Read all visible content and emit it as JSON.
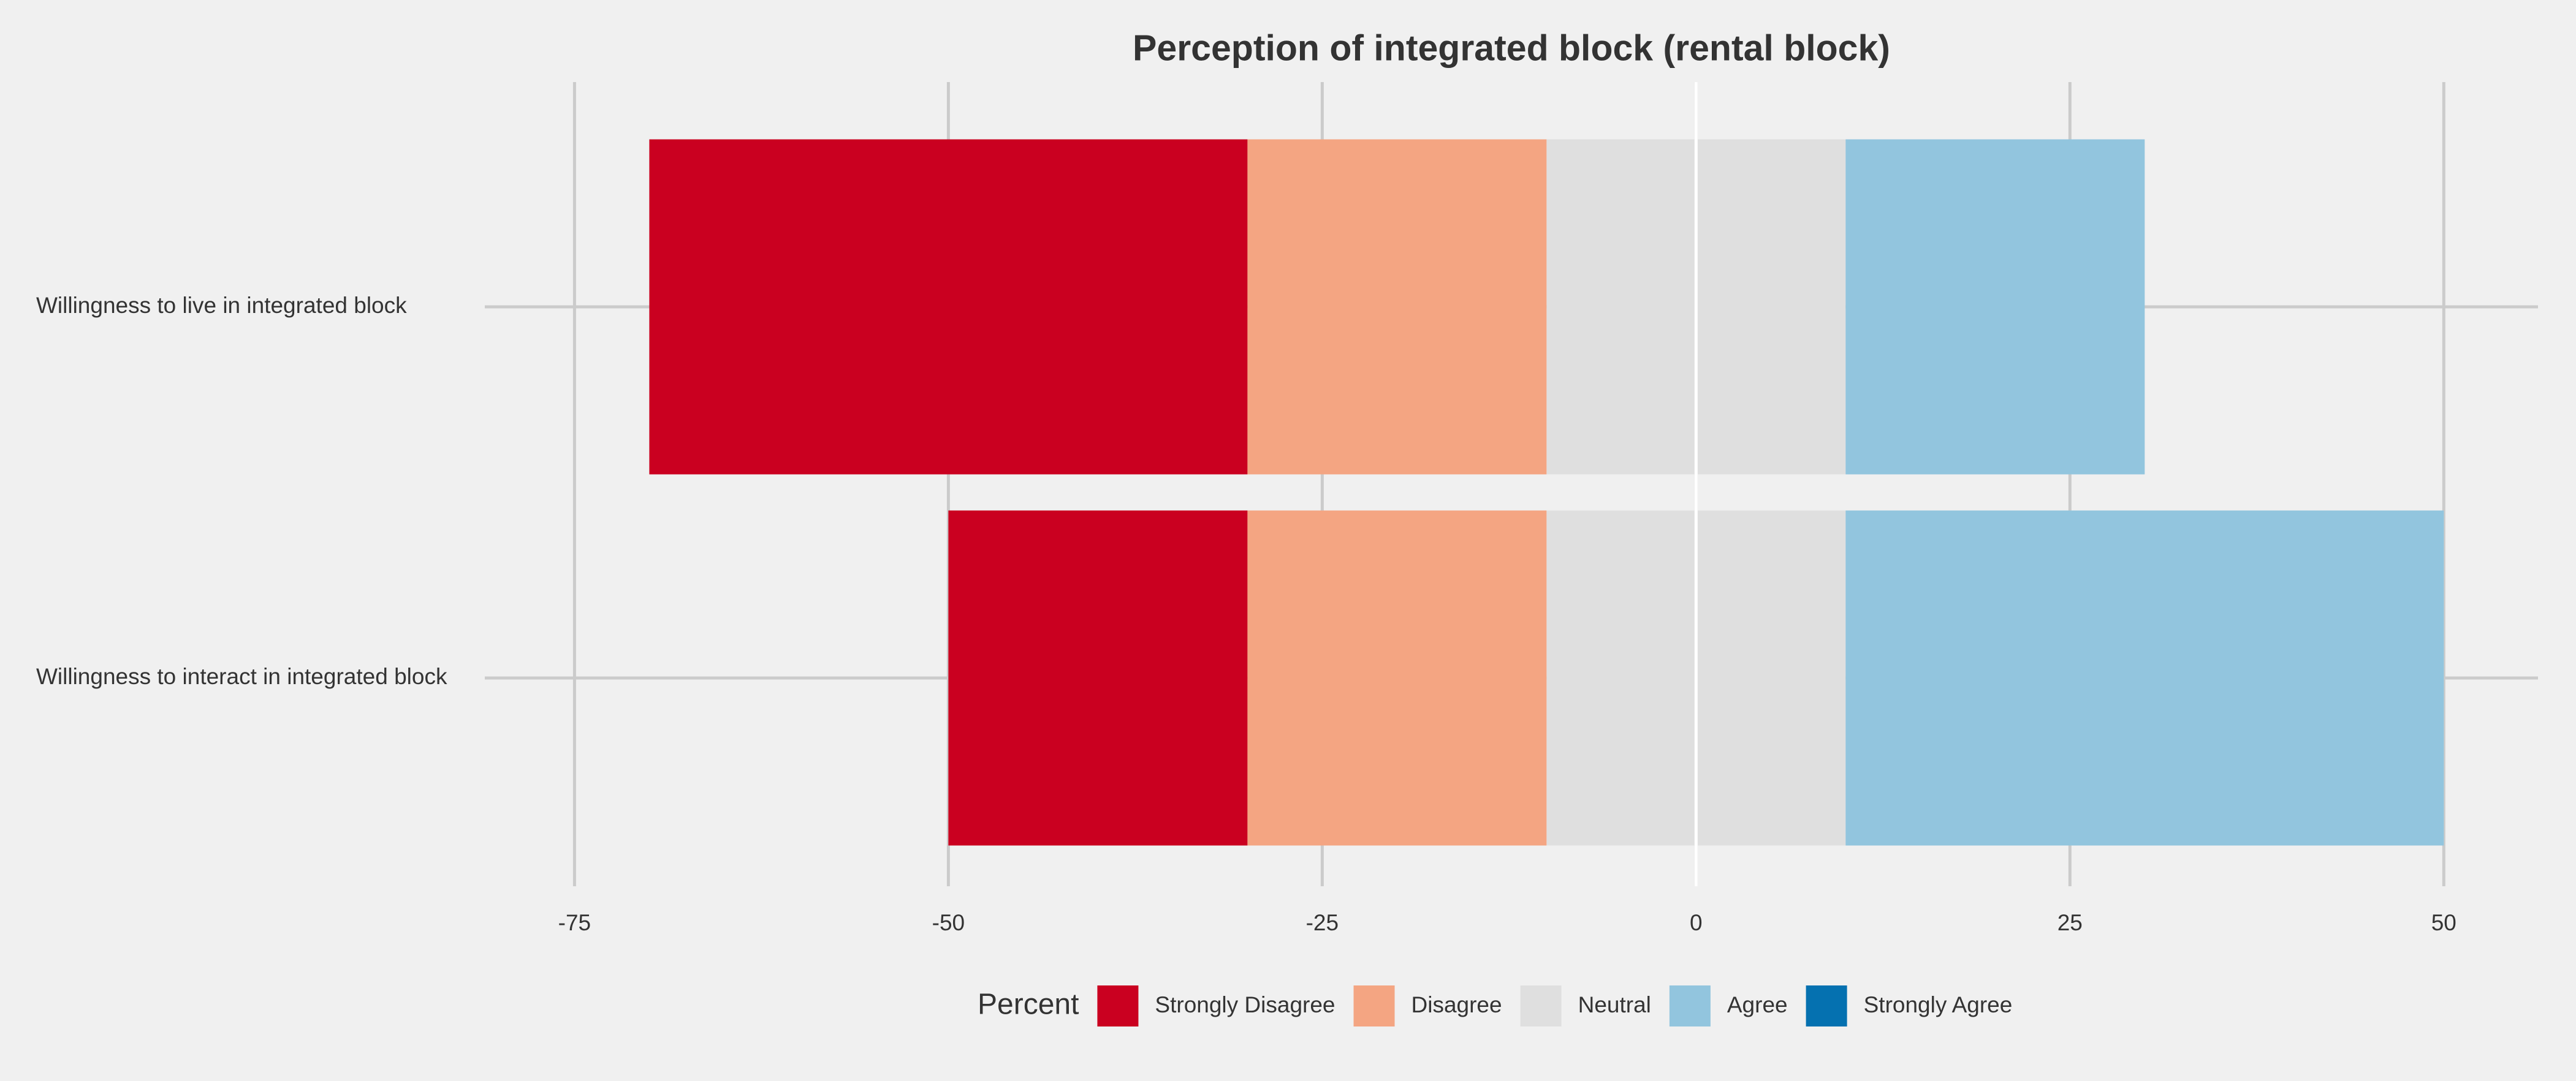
{
  "chart_data": {
    "type": "diverging_bar",
    "title": "Perception of integrated block (rental block)",
    "categories": [
      "Willingness to live in integrated block",
      "Willingness to interact in integrated block"
    ],
    "legend_title": "Percent",
    "series": [
      {
        "name": "Strongly Disagree",
        "color": "#ca0020",
        "values": [
          40,
          20
        ]
      },
      {
        "name": "Disagree",
        "color": "#f4a582",
        "values": [
          20,
          20
        ]
      },
      {
        "name": "Neutral",
        "color": "#dfdfdf",
        "values": [
          20,
          20
        ]
      },
      {
        "name": "Agree",
        "color": "#92c5de",
        "values": [
          20,
          40
        ]
      },
      {
        "name": "Strongly Agree",
        "color": "#0571b0",
        "values": [
          0,
          0
        ]
      }
    ],
    "xlim": [
      -81,
      56.3
    ],
    "xticks": [
      -75,
      -50,
      -25,
      0,
      25,
      50
    ],
    "grid": true,
    "legend_position": "bottom"
  }
}
